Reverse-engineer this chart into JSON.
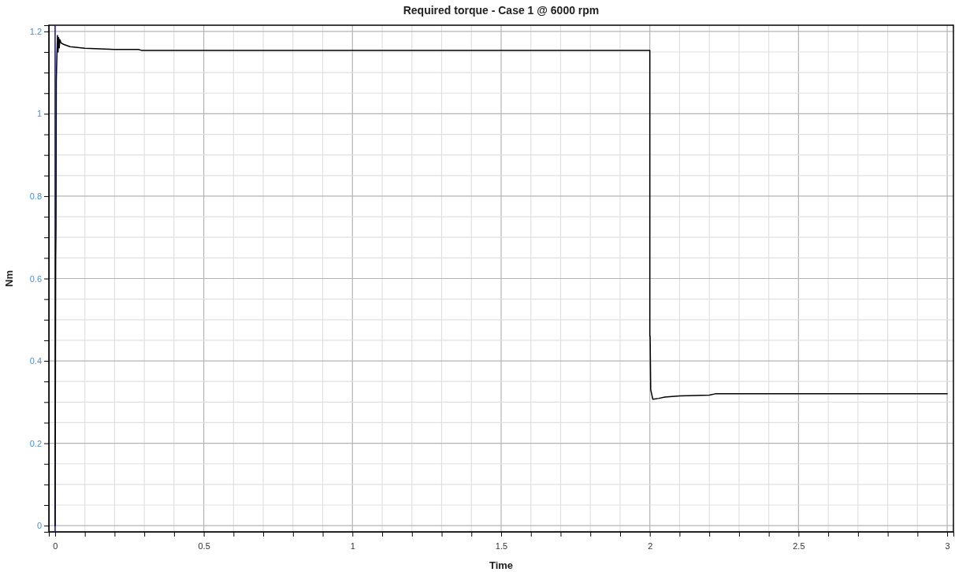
{
  "chart_data": {
    "type": "line",
    "title": "Required torque - Case 1 @ 6000 rpm",
    "xlabel": "Time",
    "ylabel": "Nm",
    "x": [
      0,
      0.002,
      0.003,
      0.004,
      0.006,
      0.008,
      0.01,
      0.012,
      0.014,
      0.016,
      0.02,
      0.03,
      0.05,
      0.1,
      0.2,
      0.28,
      0.29,
      2.0,
      2.0,
      2.001,
      2.003,
      2.01,
      2.03,
      2.05,
      2.1,
      2.2,
      2.22,
      3.0
    ],
    "series": [
      {
        "color": "#000000",
        "values": [
          0,
          0.65,
          0.72,
          1.08,
          1.14,
          1.19,
          1.15,
          1.185,
          1.16,
          1.18,
          1.172,
          1.168,
          1.163,
          1.159,
          1.156,
          1.156,
          1.154,
          1.154,
          0.46,
          0.46,
          0.33,
          0.307,
          0.309,
          0.312,
          0.315,
          0.317,
          0.32,
          0.32
        ]
      }
    ],
    "ref_lines": [
      {
        "axis": "x",
        "value": 0,
        "color": "#1a1aa6"
      }
    ],
    "xlim": [
      -0.021,
      3.021
    ],
    "ylim": [
      -0.015,
      1.215
    ],
    "xticks": [
      0,
      {
        "value": 0.1,
        "label": null
      },
      {
        "value": 0.2,
        "label": null
      },
      {
        "value": 0.3,
        "label": null
      },
      {
        "value": 0.4,
        "label": null
      },
      0.5,
      {
        "value": 0.6,
        "label": null
      },
      {
        "value": 0.7,
        "label": null
      },
      {
        "value": 0.8,
        "label": null
      },
      {
        "value": 0.9,
        "label": null
      },
      1,
      {
        "value": 1.1,
        "label": null
      },
      {
        "value": 1.2,
        "label": null
      },
      {
        "value": 1.3,
        "label": null
      },
      {
        "value": 1.4,
        "label": null
      },
      1.5,
      {
        "value": 1.6,
        "label": null
      },
      {
        "value": 1.7,
        "label": null
      },
      {
        "value": 1.8,
        "label": null
      },
      {
        "value": 1.9,
        "label": null
      },
      2,
      {
        "value": 2.1,
        "label": null
      },
      {
        "value": 2.2,
        "label": null
      },
      {
        "value": 2.3,
        "label": null
      },
      {
        "value": 2.4,
        "label": null
      },
      2.5,
      {
        "value": 2.6,
        "label": null
      },
      {
        "value": 2.7,
        "label": null
      },
      {
        "value": 2.8,
        "label": null
      },
      {
        "value": 2.9,
        "label": null
      },
      3
    ],
    "yticks": [
      0,
      {
        "value": 0.05,
        "label": null
      },
      {
        "value": 0.1,
        "label": null
      },
      {
        "value": 0.15,
        "label": null
      },
      0.2,
      {
        "value": 0.25,
        "label": null
      },
      {
        "value": 0.3,
        "label": null
      },
      {
        "value": 0.35,
        "label": null
      },
      0.4,
      {
        "value": 0.45,
        "label": null
      },
      {
        "value": 0.5,
        "label": null
      },
      {
        "value": 0.55,
        "label": null
      },
      0.6,
      {
        "value": 0.65,
        "label": null
      },
      {
        "value": 0.7,
        "label": null
      },
      {
        "value": 0.75,
        "label": null
      },
      0.8,
      {
        "value": 0.85,
        "label": null
      },
      {
        "value": 0.9,
        "label": null
      },
      {
        "value": 0.95,
        "label": null
      },
      1,
      {
        "value": 1.05,
        "label": null
      },
      {
        "value": 1.1,
        "label": null
      },
      {
        "value": 1.15,
        "label": null
      },
      1.2
    ],
    "grid": true,
    "marker": "none",
    "line_style": "solid"
  }
}
